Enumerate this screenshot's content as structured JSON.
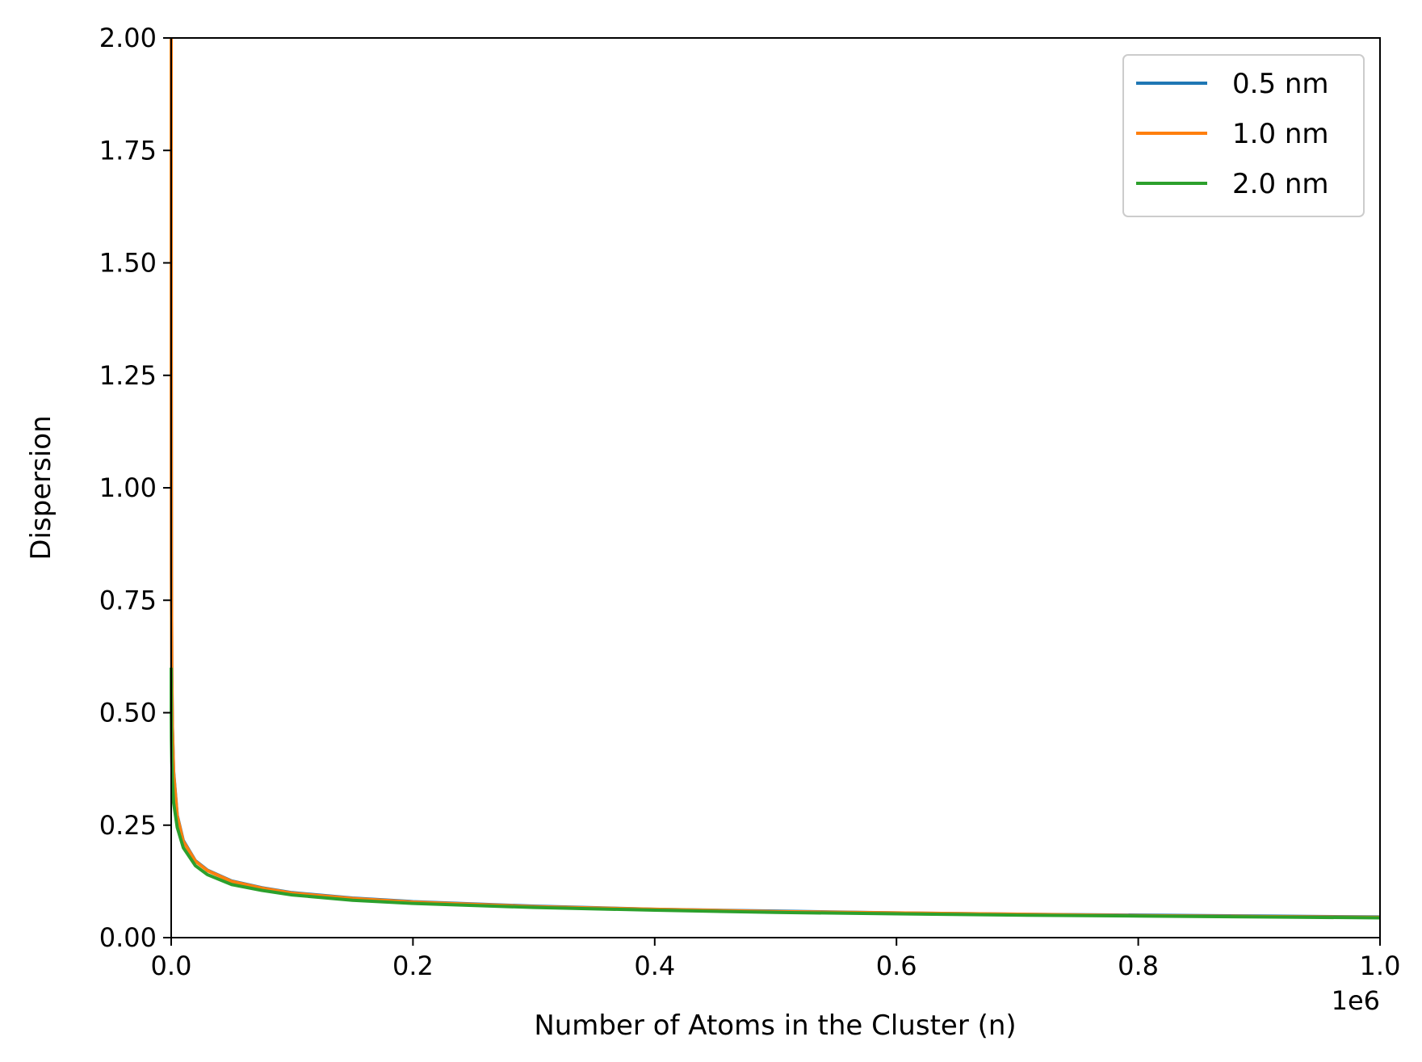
{
  "chart_data": {
    "type": "line",
    "xlabel": "Number of Atoms in the Cluster (n)",
    "ylabel": "Dispersion",
    "x_offset_label": "1e6",
    "xlim": [
      0,
      1000000
    ],
    "ylim": [
      0,
      2.0
    ],
    "xticks": [
      0,
      200000,
      400000,
      600000,
      800000,
      1000000
    ],
    "xtick_labels": [
      "0.0",
      "0.2",
      "0.4",
      "0.6",
      "0.8",
      "1.0"
    ],
    "yticks": [
      0,
      0.25,
      0.5,
      0.75,
      1.0,
      1.25,
      1.5,
      1.75,
      2.0
    ],
    "ytick_labels": [
      "0.00",
      "0.25",
      "0.50",
      "0.75",
      "1.00",
      "1.25",
      "1.50",
      "1.75",
      "2.00"
    ],
    "grid": false,
    "legend_position": "top-right",
    "x": [
      1,
      50,
      200,
      500,
      1000,
      2000,
      5000,
      10000,
      20000,
      30000,
      50000,
      75000,
      100000,
      150000,
      200000,
      300000,
      400000,
      500000,
      600000,
      700000,
      800000,
      900000,
      1000000
    ],
    "series": [
      {
        "name": "0.5 nm",
        "color": "#1f77b4",
        "values": [
          2.0,
          1.3,
          0.81,
          0.59,
          0.47,
          0.37,
          0.272,
          0.216,
          0.171,
          0.15,
          0.126,
          0.111,
          0.1,
          0.088,
          0.08,
          0.07,
          0.063,
          0.059,
          0.055,
          0.052,
          0.05,
          0.048,
          0.046
        ]
      },
      {
        "name": "1.0 nm",
        "color": "#ff7f0e",
        "values": [
          2.0,
          1.28,
          0.8,
          0.585,
          0.465,
          0.366,
          0.27,
          0.214,
          0.17,
          0.149,
          0.125,
          0.11,
          0.099,
          0.087,
          0.079,
          0.069,
          0.063,
          0.058,
          0.055,
          0.052,
          0.049,
          0.047,
          0.045
        ]
      },
      {
        "name": "2.0 nm",
        "color": "#2ca02c",
        "values": [
          0.6,
          0.5,
          0.44,
          0.39,
          0.35,
          0.3,
          0.245,
          0.2,
          0.16,
          0.14,
          0.118,
          0.105,
          0.095,
          0.083,
          0.076,
          0.067,
          0.061,
          0.056,
          0.053,
          0.05,
          0.048,
          0.046,
          0.044
        ]
      }
    ]
  }
}
